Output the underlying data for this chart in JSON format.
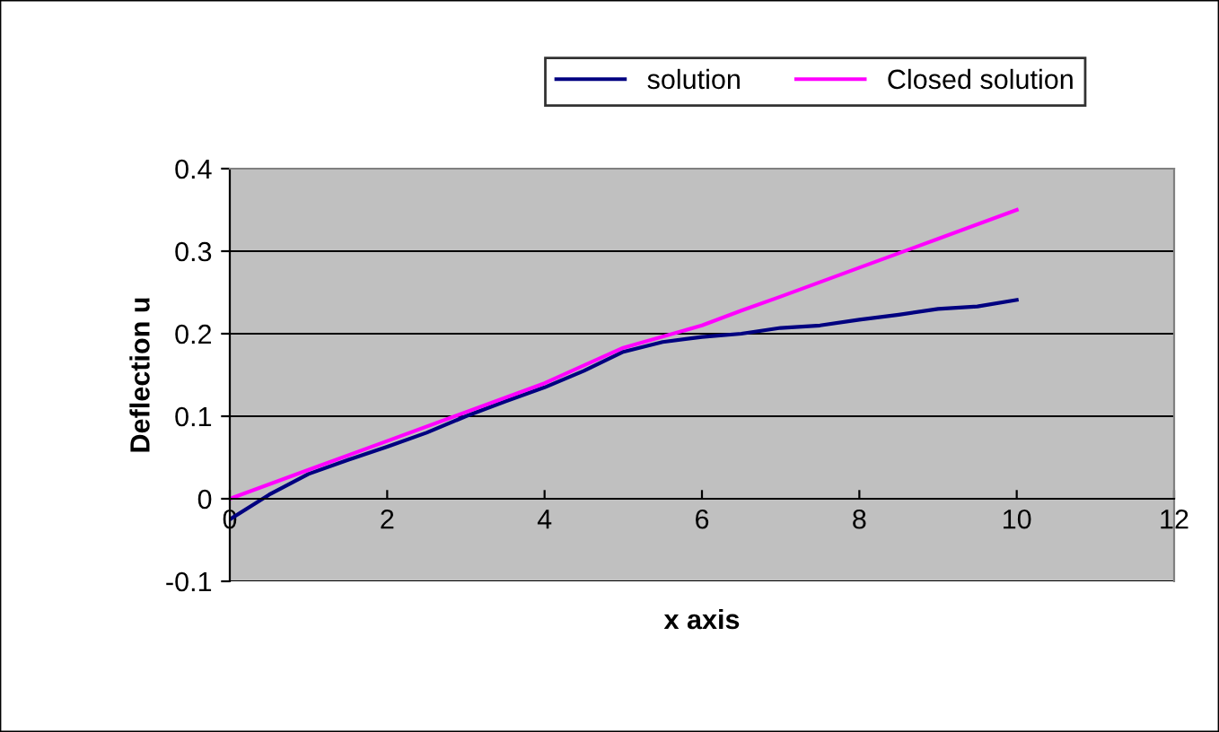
{
  "chart_data": {
    "type": "line",
    "xlabel": "x axis",
    "ylabel": "Deflection u",
    "series": [
      {
        "name": "solution",
        "color": "#000080",
        "x": [
          0,
          0.5,
          1,
          1.5,
          2,
          2.5,
          3,
          3.5,
          4,
          4.5,
          5,
          5.5,
          6,
          6.5,
          7,
          7.5,
          8,
          8.5,
          9,
          9.5,
          10
        ],
        "values": [
          -0.025,
          0.005,
          0.03,
          0.047,
          0.063,
          0.08,
          0.1,
          0.118,
          0.135,
          0.155,
          0.178,
          0.19,
          0.196,
          0.2,
          0.207,
          0.21,
          0.217,
          0.223,
          0.23,
          0.233,
          0.241
        ]
      },
      {
        "name": "Closed solution",
        "color": "#ff00ff",
        "x": [
          0,
          1,
          2,
          3,
          4,
          5,
          6,
          6.5,
          7,
          8,
          9,
          10
        ],
        "values": [
          0,
          0.035,
          0.07,
          0.105,
          0.14,
          0.183,
          0.21,
          0.228,
          0.245,
          0.28,
          0.315,
          0.35
        ]
      }
    ],
    "xlim": [
      0,
      12
    ],
    "xticks": [
      0,
      2,
      4,
      6,
      8,
      10,
      12
    ],
    "ylim": [
      -0.1,
      0.4
    ],
    "yticks": [
      -0.1,
      0,
      0.1,
      0.2,
      0.3,
      0.4
    ],
    "grid": "y",
    "legend": "top",
    "marker": "none",
    "line_style": "solid"
  }
}
